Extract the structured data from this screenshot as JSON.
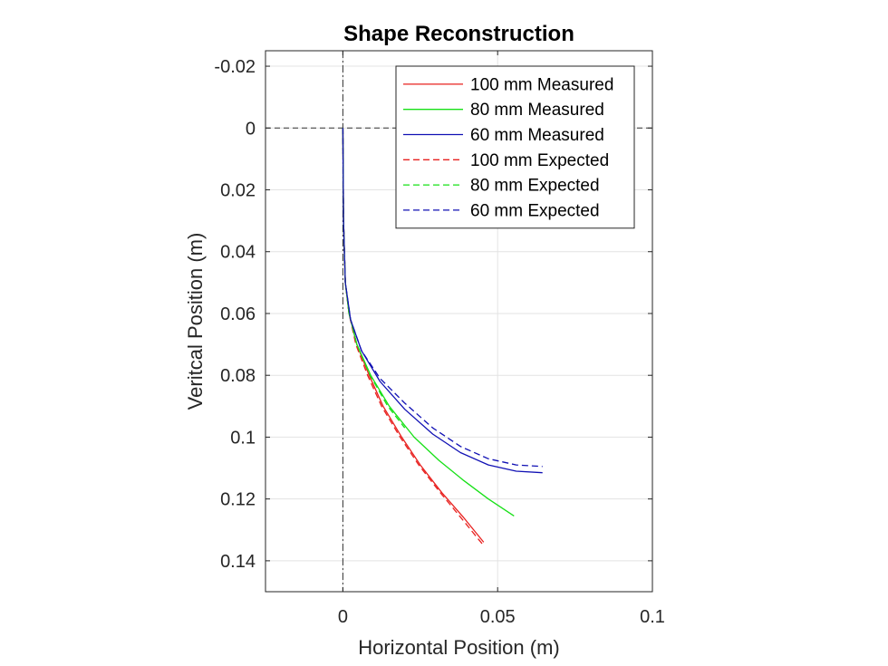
{
  "chart_data": {
    "type": "line",
    "title": "Shape Reconstruction",
    "xlabel": "Horizontal Position (m)",
    "ylabel": "Veritcal Position (m)",
    "xlim": [
      -0.025,
      0.1
    ],
    "ylim": [
      -0.025,
      0.15
    ],
    "y_reversed": true,
    "grid": true,
    "legend_position": "top-right",
    "x_ticks": [
      0,
      0.05,
      0.1
    ],
    "x_tick_labels": [
      "0",
      "0.05",
      "0.1"
    ],
    "y_ticks": [
      -0.02,
      0,
      0.02,
      0.04,
      0.06,
      0.08,
      0.1,
      0.12,
      0.14
    ],
    "y_tick_labels": [
      "-0.02",
      "0",
      "0.02",
      "0.04",
      "0.06",
      "0.08",
      "0.1",
      "0.12",
      "0.14"
    ],
    "reference_lines": [
      {
        "orientation": "horizontal",
        "value": 0,
        "style": "dashed",
        "color": "#333333"
      },
      {
        "orientation": "vertical",
        "value": 0,
        "style": "dashdot",
        "color": "#333333"
      }
    ],
    "series": [
      {
        "name": "100 mm Measured",
        "color": "#e8201e",
        "style": "solid",
        "x": [
          0,
          0.0002,
          0.0008,
          0.002,
          0.0045,
          0.0085,
          0.013,
          0.019,
          0.025,
          0.032,
          0.039,
          0.0455
        ],
        "y": [
          0,
          0.03,
          0.05,
          0.06,
          0.07,
          0.08,
          0.09,
          0.1,
          0.109,
          0.118,
          0.126,
          0.134
        ]
      },
      {
        "name": "80 mm Measured",
        "color": "#16e016",
        "style": "solid",
        "x": [
          0,
          0.0002,
          0.0008,
          0.002,
          0.0045,
          0.009,
          0.015,
          0.023,
          0.031,
          0.039,
          0.047,
          0.0553
        ],
        "y": [
          0,
          0.03,
          0.05,
          0.06,
          0.07,
          0.08,
          0.09,
          0.1,
          0.1075,
          0.114,
          0.12,
          0.1255
        ]
      },
      {
        "name": "60 mm Measured",
        "color": "#1010b4",
        "style": "solid",
        "x": [
          0,
          0.0002,
          0.0008,
          0.0025,
          0.006,
          0.012,
          0.02,
          0.029,
          0.038,
          0.047,
          0.056,
          0.0645
        ],
        "y": [
          0,
          0.03,
          0.05,
          0.062,
          0.072,
          0.082,
          0.091,
          0.099,
          0.105,
          0.109,
          0.111,
          0.1115
        ]
      },
      {
        "name": "100 mm Expected",
        "color": "#e8201e",
        "style": "dashed",
        "x": [
          0,
          0.0002,
          0.0008,
          0.002,
          0.0042,
          0.008,
          0.0125,
          0.0185,
          0.0245,
          0.0315,
          0.0385,
          0.045
        ],
        "y": [
          0,
          0.03,
          0.05,
          0.06,
          0.07,
          0.08,
          0.09,
          0.1,
          0.109,
          0.118,
          0.1265,
          0.1345
        ]
      },
      {
        "name": "80 mm Expected",
        "color": "#16e016",
        "style": "dashed",
        "x": [
          0,
          0.0002,
          0.0008,
          0.002,
          0.0045,
          0.0088,
          0.0145,
          0.02
        ],
        "y": [
          0,
          0.03,
          0.05,
          0.06,
          0.07,
          0.08,
          0.09,
          0.097
        ]
      },
      {
        "name": "60 mm Expected",
        "color": "#1010b4",
        "style": "dashed",
        "x": [
          0,
          0.0002,
          0.0008,
          0.0025,
          0.006,
          0.012,
          0.02,
          0.029,
          0.038,
          0.047,
          0.056,
          0.0645
        ],
        "y": [
          0,
          0.03,
          0.05,
          0.062,
          0.072,
          0.081,
          0.089,
          0.097,
          0.103,
          0.107,
          0.109,
          0.1095
        ]
      }
    ]
  }
}
